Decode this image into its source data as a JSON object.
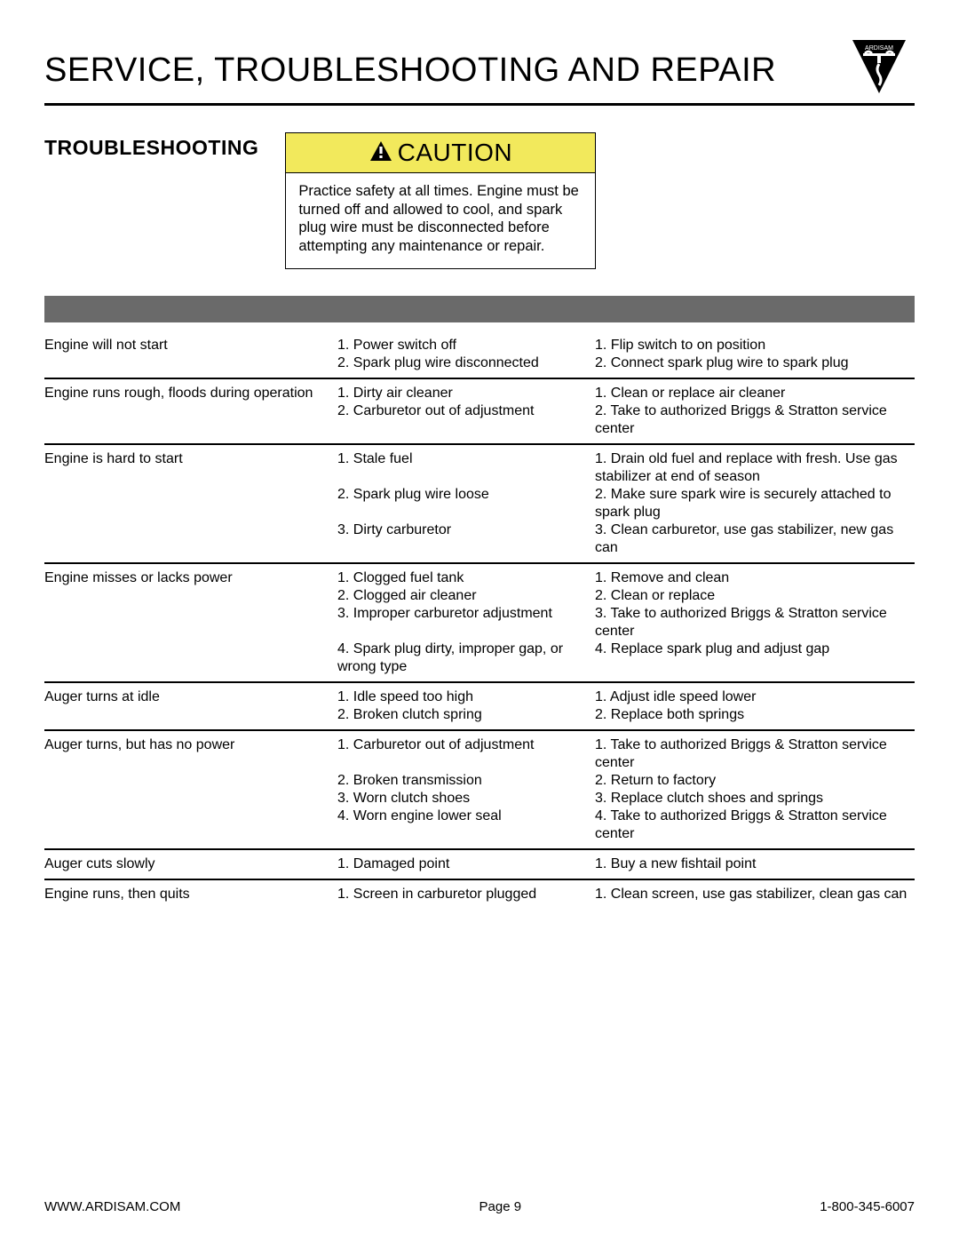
{
  "header": {
    "title": "SERVICE, TROUBLESHOOTING AND REPAIR",
    "logo_text": "ARDISAM"
  },
  "section": {
    "heading": "TROUBLESHOOTING"
  },
  "caution": {
    "label": "CAUTION",
    "header_bg": "#f2e95c",
    "body": "Practice safety at all times. Engine must be turned off and allowed to cool, and spark plug wire must be disconnected before attempting any maintenance or repair."
  },
  "table": {
    "gray_bar_color": "#6a6a6a",
    "rows": [
      {
        "problem": "Engine will not start",
        "causes": [
          "1. Power switch off",
          "2. Spark plug wire disconnected"
        ],
        "remedies": [
          "1. Flip switch to on position",
          "2. Connect spark plug wire to spark plug"
        ]
      },
      {
        "problem": "Engine runs rough, floods during operation",
        "causes": [
          "1. Dirty air cleaner",
          "2. Carburetor out of adjustment"
        ],
        "remedies": [
          "1. Clean or replace air cleaner",
          "2. Take to authorized Briggs & Stratton service center"
        ]
      },
      {
        "problem": "Engine is hard to start",
        "causes": [
          "1. Stale fuel",
          "",
          "2. Spark plug wire loose",
          "",
          "3. Dirty carburetor"
        ],
        "remedies": [
          "1. Drain old fuel and replace with fresh. Use gas stabilizer at end of season",
          "2. Make sure spark wire is securely attached to spark plug",
          "3. Clean carburetor, use gas stabilizer, new gas can"
        ]
      },
      {
        "problem": "Engine misses or lacks power",
        "causes": [
          "1. Clogged fuel tank",
          "2. Clogged air cleaner",
          "3. Improper carburetor adjustment",
          "",
          "4. Spark plug dirty, improper gap, or wrong type"
        ],
        "remedies": [
          "1. Remove and clean",
          "2. Clean or replace",
          "3. Take to authorized Briggs & Stratton service center",
          "4. Replace spark plug and adjust gap"
        ]
      },
      {
        "problem": "Auger turns at idle",
        "causes": [
          "1. Idle speed too high",
          "2. Broken clutch spring"
        ],
        "remedies": [
          "1. Adjust idle speed lower",
          "2. Replace both springs"
        ]
      },
      {
        "problem": "Auger turns, but has no power",
        "causes": [
          "1. Carburetor out of adjustment",
          "",
          "2. Broken transmission",
          "3. Worn clutch shoes",
          "4. Worn engine lower seal"
        ],
        "remedies": [
          "1. Take to authorized Briggs & Stratton service center",
          "2. Return to factory",
          "3. Replace clutch shoes and springs",
          "4. Take to authorized Briggs & Stratton service center"
        ]
      },
      {
        "problem": "Auger cuts slowly",
        "causes": [
          "1. Damaged point"
        ],
        "remedies": [
          "1. Buy a new fishtail point"
        ]
      },
      {
        "problem": "Engine runs, then quits",
        "causes": [
          "1. Screen in carburetor plugged"
        ],
        "remedies": [
          "1. Clean screen, use gas stabilizer, clean gas can"
        ]
      }
    ]
  },
  "footer": {
    "left": "WWW.ARDISAM.COM",
    "center": "Page 9",
    "right": "1-800-345-6007"
  }
}
